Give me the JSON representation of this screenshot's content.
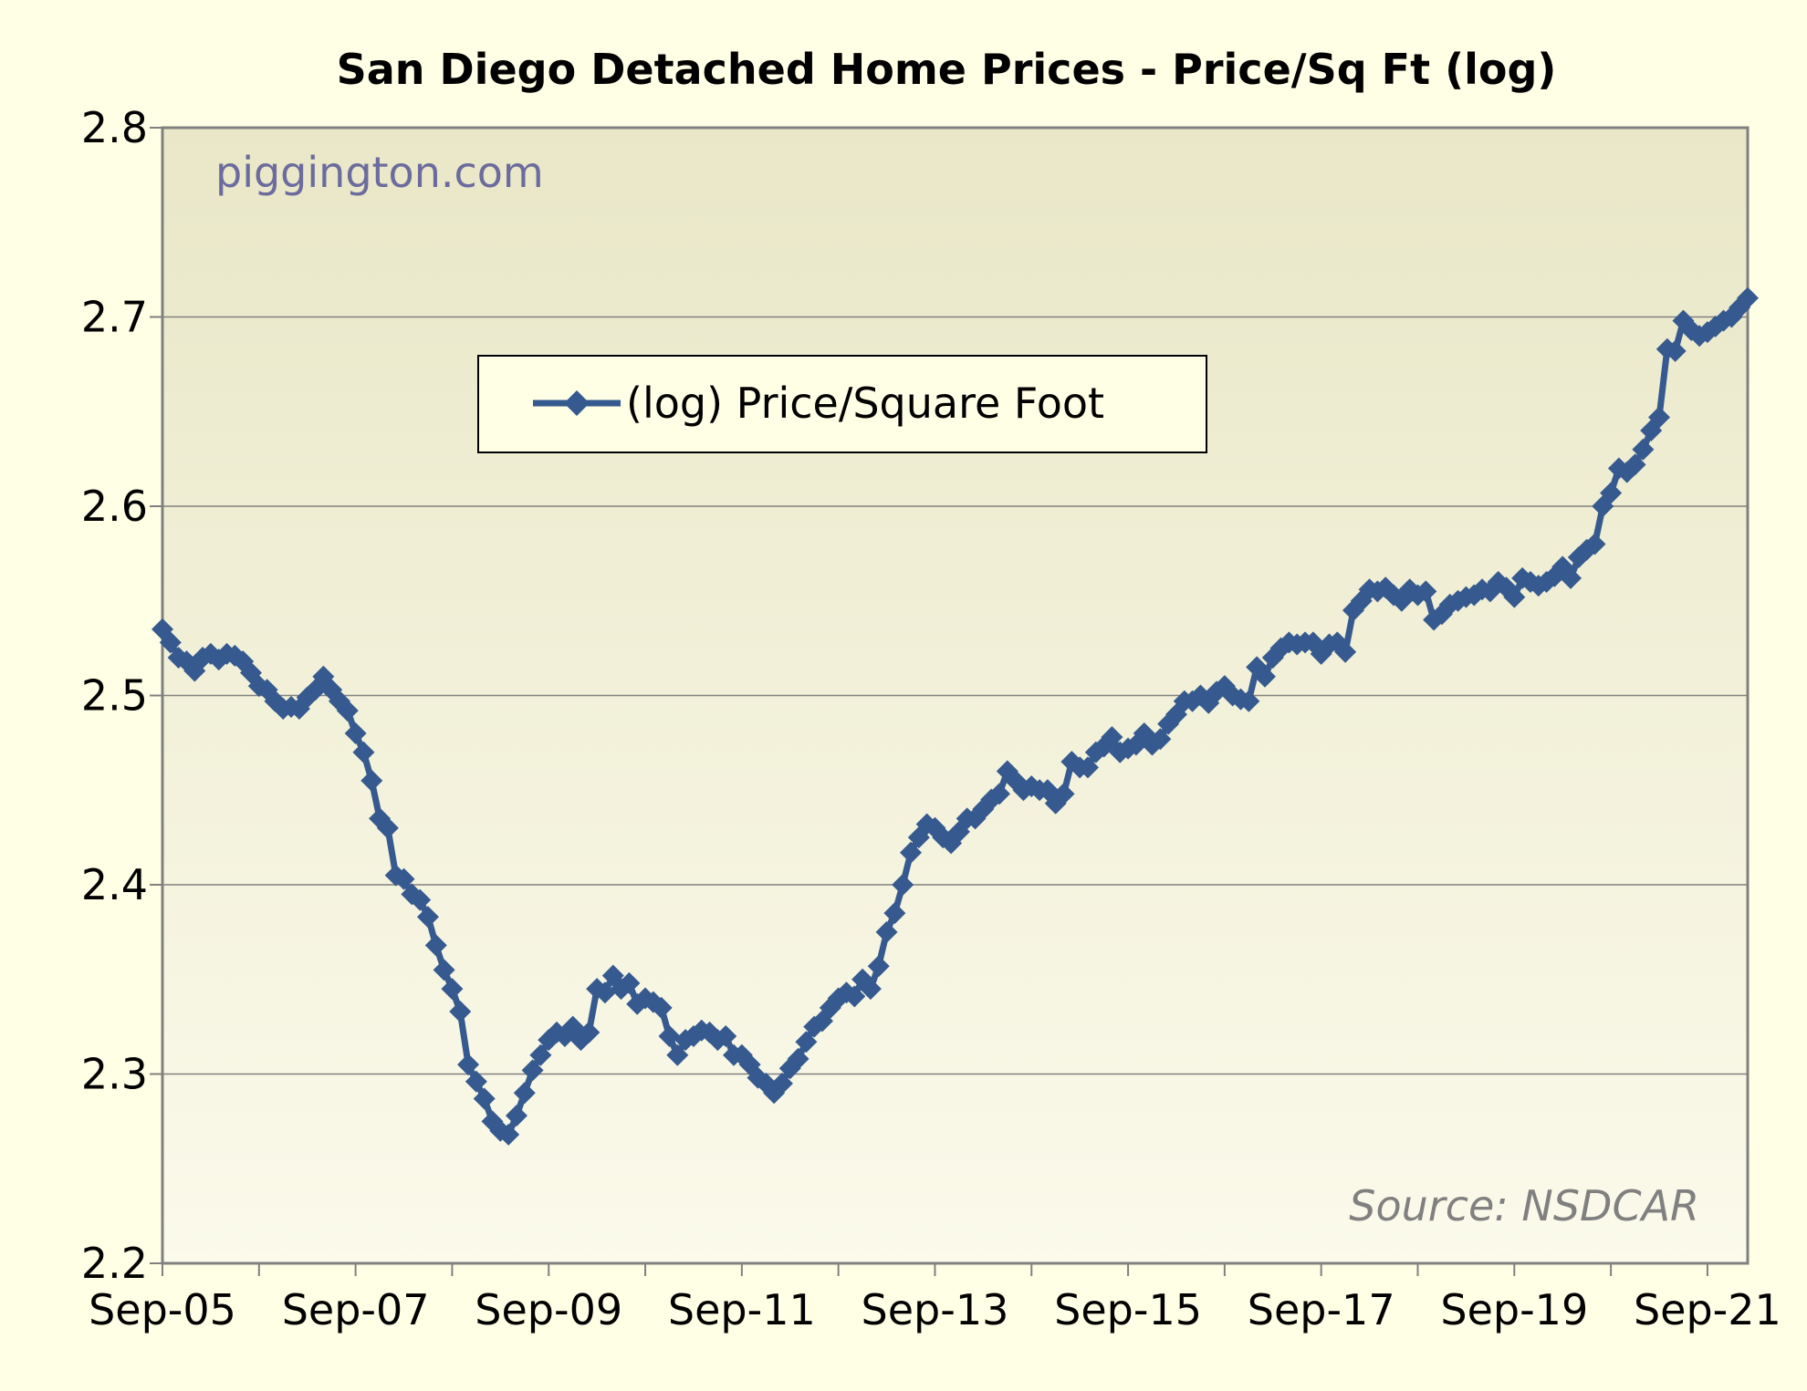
{
  "chart_data": {
    "type": "line",
    "title": "San Diego Detached Home Prices - Price/Sq Ft (log)",
    "watermark": "piggington.com",
    "source": "Source: NSDCAR",
    "xlabel": "",
    "ylabel": "",
    "ylim": [
      2.2,
      2.8
    ],
    "yticks": [
      "2.2",
      "2.3",
      "2.4",
      "2.5",
      "2.6",
      "2.7",
      "2.8"
    ],
    "xlim": [
      "Sep-05",
      "Feb-22"
    ],
    "xticks": [
      "Sep-05",
      "Sep-07",
      "Sep-09",
      "Sep-11",
      "Sep-13",
      "Sep-15",
      "Sep-17",
      "Sep-19",
      "Sep-21"
    ],
    "grid": "horizontal",
    "legend_position": "top-left",
    "colors": {
      "series": "#36598f",
      "plot_bg": "#f3f1da",
      "page_bg": "#ffffe6",
      "watermark": "#6b6b9e",
      "source": "#808080"
    },
    "series": [
      {
        "name": "(log) Price/Square Foot",
        "x": [
          "Sep-05",
          "Oct-05",
          "Nov-05",
          "Dec-05",
          "Jan-06",
          "Feb-06",
          "Mar-06",
          "Apr-06",
          "May-06",
          "Jun-06",
          "Jul-06",
          "Aug-06",
          "Sep-06",
          "Oct-06",
          "Nov-06",
          "Dec-06",
          "Jan-07",
          "Feb-07",
          "Mar-07",
          "Apr-07",
          "May-07",
          "Jun-07",
          "Jul-07",
          "Aug-07",
          "Sep-07",
          "Oct-07",
          "Nov-07",
          "Dec-07",
          "Jan-08",
          "Feb-08",
          "Mar-08",
          "Apr-08",
          "May-08",
          "Jun-08",
          "Jul-08",
          "Aug-08",
          "Sep-08",
          "Oct-08",
          "Nov-08",
          "Dec-08",
          "Jan-09",
          "Feb-09",
          "Mar-09",
          "Apr-09",
          "May-09",
          "Jun-09",
          "Jul-09",
          "Aug-09",
          "Sep-09",
          "Oct-09",
          "Nov-09",
          "Dec-09",
          "Jan-10",
          "Feb-10",
          "Mar-10",
          "Apr-10",
          "May-10",
          "Jun-10",
          "Jul-10",
          "Aug-10",
          "Sep-10",
          "Oct-10",
          "Nov-10",
          "Dec-10",
          "Jan-11",
          "Feb-11",
          "Mar-11",
          "Apr-11",
          "May-11",
          "Jun-11",
          "Jul-11",
          "Aug-11",
          "Sep-11",
          "Oct-11",
          "Nov-11",
          "Dec-11",
          "Jan-12",
          "Feb-12",
          "Mar-12",
          "Apr-12",
          "May-12",
          "Jun-12",
          "Jul-12",
          "Aug-12",
          "Sep-12",
          "Oct-12",
          "Nov-12",
          "Dec-12",
          "Jan-13",
          "Feb-13",
          "Mar-13",
          "Apr-13",
          "May-13",
          "Jun-13",
          "Jul-13",
          "Aug-13",
          "Sep-13",
          "Oct-13",
          "Nov-13",
          "Dec-13",
          "Jan-14",
          "Feb-14",
          "Mar-14",
          "Apr-14",
          "May-14",
          "Jun-14",
          "Jul-14",
          "Aug-14",
          "Sep-14",
          "Oct-14",
          "Nov-14",
          "Dec-14",
          "Jan-15",
          "Feb-15",
          "Mar-15",
          "Apr-15",
          "May-15",
          "Jun-15",
          "Jul-15",
          "Aug-15",
          "Sep-15",
          "Oct-15",
          "Nov-15",
          "Dec-15",
          "Jan-16",
          "Feb-16",
          "Mar-16",
          "Apr-16",
          "May-16",
          "Jun-16",
          "Jul-16",
          "Aug-16",
          "Sep-16",
          "Oct-16",
          "Nov-16",
          "Dec-16",
          "Jan-17",
          "Feb-17",
          "Mar-17",
          "Apr-17",
          "May-17",
          "Jun-17",
          "Jul-17",
          "Aug-17",
          "Sep-17",
          "Oct-17",
          "Nov-17",
          "Dec-17",
          "Jan-18",
          "Feb-18",
          "Mar-18",
          "Apr-18",
          "May-18",
          "Jun-18",
          "Jul-18",
          "Aug-18",
          "Sep-18",
          "Oct-18",
          "Nov-18",
          "Dec-18",
          "Jan-19",
          "Feb-19",
          "Mar-19",
          "Apr-19",
          "May-19",
          "Jun-19",
          "Jul-19",
          "Aug-19",
          "Sep-19",
          "Oct-19",
          "Nov-19",
          "Dec-19",
          "Jan-20",
          "Feb-20",
          "Mar-20",
          "Apr-20",
          "May-20",
          "Jun-20",
          "Jul-20",
          "Aug-20",
          "Sep-20",
          "Oct-20",
          "Nov-20",
          "Dec-20",
          "Jan-21",
          "Feb-21",
          "Mar-21",
          "Apr-21",
          "May-21",
          "Jun-21",
          "Jul-21",
          "Aug-21",
          "Sep-21",
          "Oct-21",
          "Nov-21",
          "Dec-21",
          "Jan-22",
          "Feb-22"
        ],
        "values": [
          2.535,
          2.528,
          2.52,
          2.518,
          2.513,
          2.52,
          2.522,
          2.519,
          2.522,
          2.521,
          2.518,
          2.512,
          2.505,
          2.503,
          2.497,
          2.493,
          2.494,
          2.493,
          2.499,
          2.503,
          2.51,
          2.503,
          2.497,
          2.492,
          2.48,
          2.47,
          2.455,
          2.435,
          2.43,
          2.405,
          2.403,
          2.395,
          2.392,
          2.383,
          2.368,
          2.355,
          2.345,
          2.333,
          2.305,
          2.296,
          2.287,
          2.275,
          2.27,
          2.268,
          2.278,
          2.29,
          2.302,
          2.31,
          2.318,
          2.322,
          2.32,
          2.325,
          2.318,
          2.322,
          2.345,
          2.343,
          2.352,
          2.345,
          2.348,
          2.337,
          2.34,
          2.338,
          2.335,
          2.32,
          2.31,
          2.318,
          2.32,
          2.323,
          2.322,
          2.318,
          2.32,
          2.31,
          2.31,
          2.305,
          2.298,
          2.295,
          2.29,
          2.295,
          2.303,
          2.308,
          2.317,
          2.325,
          2.328,
          2.335,
          2.34,
          2.343,
          2.341,
          2.35,
          2.345,
          2.357,
          2.375,
          2.385,
          2.4,
          2.417,
          2.425,
          2.432,
          2.43,
          2.425,
          2.422,
          2.428,
          2.435,
          2.435,
          2.44,
          2.445,
          2.448,
          2.46,
          2.455,
          2.45,
          2.452,
          2.45,
          2.45,
          2.443,
          2.448,
          2.465,
          2.462,
          2.462,
          2.47,
          2.473,
          2.478,
          2.47,
          2.472,
          2.474,
          2.48,
          2.474,
          2.477,
          2.485,
          2.49,
          2.497,
          2.497,
          2.5,
          2.496,
          2.502,
          2.505,
          2.5,
          2.498,
          2.497,
          2.515,
          2.51,
          2.52,
          2.525,
          2.528,
          2.527,
          2.528,
          2.528,
          2.522,
          2.527,
          2.528,
          2.523,
          2.545,
          2.55,
          2.556,
          2.555,
          2.557,
          2.553,
          2.55,
          2.556,
          2.553,
          2.555,
          2.54,
          2.543,
          2.548,
          2.55,
          2.552,
          2.553,
          2.556,
          2.555,
          2.56,
          2.557,
          2.552,
          2.562,
          2.56,
          2.558,
          2.56,
          2.563,
          2.568,
          2.562,
          2.573,
          2.577,
          2.58,
          2.6,
          2.607,
          2.62,
          2.618,
          2.622,
          2.63,
          2.64,
          2.647,
          2.683,
          2.682,
          2.698,
          2.693,
          2.69,
          2.692,
          2.695,
          2.698,
          2.7,
          2.705,
          2.71
        ]
      }
    ]
  }
}
